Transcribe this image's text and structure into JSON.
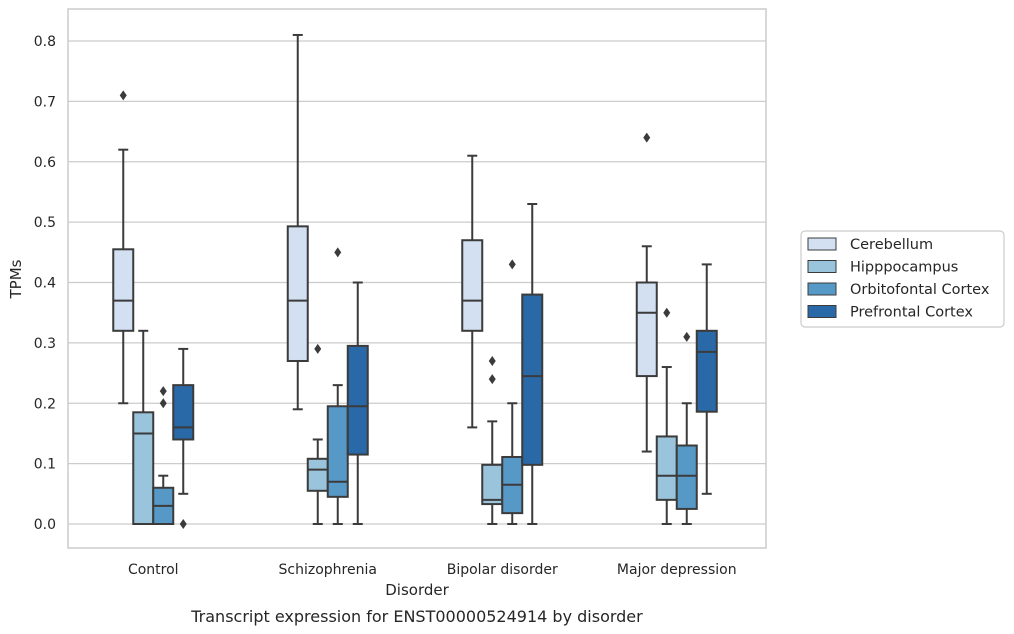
{
  "chart_data": {
    "type": "box",
    "title": "",
    "caption": "Transcript expression for ENST00000524914 by disorder",
    "xlabel": "Disorder",
    "ylabel": "TPMs",
    "ylim": [
      -0.04,
      0.85
    ],
    "yticks": [
      0.0,
      0.1,
      0.2,
      0.3,
      0.4,
      0.5,
      0.6,
      0.7,
      0.8
    ],
    "ytick_labels": [
      "0.0",
      "0.1",
      "0.2",
      "0.3",
      "0.4",
      "0.5",
      "0.6",
      "0.7",
      "0.8"
    ],
    "grid": true,
    "legend_position": "right",
    "categories": [
      "Control",
      "Schizophrenia",
      "Bipolar disorder",
      "Major depression"
    ],
    "series": [
      {
        "name": "Cerebellum",
        "color": "#d2e0f1",
        "boxes": [
          {
            "whislo": 0.2,
            "q1": 0.32,
            "med": 0.37,
            "q3": 0.455,
            "whishi": 0.62,
            "fliers": [
              0.71
            ]
          },
          {
            "whislo": 0.19,
            "q1": 0.27,
            "med": 0.37,
            "q3": 0.493,
            "whishi": 0.81,
            "fliers": []
          },
          {
            "whislo": 0.16,
            "q1": 0.32,
            "med": 0.37,
            "q3": 0.47,
            "whishi": 0.61,
            "fliers": []
          },
          {
            "whislo": 0.12,
            "q1": 0.245,
            "med": 0.35,
            "q3": 0.4,
            "whishi": 0.46,
            "fliers": [
              0.64
            ]
          }
        ]
      },
      {
        "name": "Hipppocampus",
        "color": "#9ac3dc",
        "boxes": [
          {
            "whislo": 0.0,
            "q1": 0.0,
            "med": 0.15,
            "q3": 0.185,
            "whishi": 0.32,
            "fliers": []
          },
          {
            "whislo": 0.0,
            "q1": 0.055,
            "med": 0.09,
            "q3": 0.108,
            "whishi": 0.14,
            "fliers": [
              0.29
            ]
          },
          {
            "whislo": 0.0,
            "q1": 0.033,
            "med": 0.04,
            "q3": 0.098,
            "whishi": 0.17,
            "fliers": [
              0.27,
              0.24
            ]
          },
          {
            "whislo": 0.0,
            "q1": 0.04,
            "med": 0.08,
            "q3": 0.145,
            "whishi": 0.26,
            "fliers": [
              0.35
            ]
          }
        ]
      },
      {
        "name": "Orbitofontal Cortex",
        "color": "#5799c6",
        "boxes": [
          {
            "whislo": 0.0,
            "q1": 0.0,
            "med": 0.03,
            "q3": 0.06,
            "whishi": 0.08,
            "fliers": [
              0.22,
              0.2
            ]
          },
          {
            "whislo": 0.0,
            "q1": 0.045,
            "med": 0.07,
            "q3": 0.195,
            "whishi": 0.23,
            "fliers": [
              0.45
            ]
          },
          {
            "whislo": 0.0,
            "q1": 0.018,
            "med": 0.065,
            "q3": 0.111,
            "whishi": 0.2,
            "fliers": [
              0.43
            ]
          },
          {
            "whislo": 0.0,
            "q1": 0.025,
            "med": 0.08,
            "q3": 0.13,
            "whishi": 0.2,
            "fliers": [
              0.31
            ]
          }
        ]
      },
      {
        "name": "Prefrontal Cortex",
        "color": "#2a69a8",
        "boxes": [
          {
            "whislo": 0.05,
            "q1": 0.14,
            "med": 0.16,
            "q3": 0.23,
            "whishi": 0.29,
            "fliers": [
              0.0
            ]
          },
          {
            "whislo": 0.0,
            "q1": 0.115,
            "med": 0.195,
            "q3": 0.295,
            "whishi": 0.4,
            "fliers": []
          },
          {
            "whislo": 0.0,
            "q1": 0.098,
            "med": 0.245,
            "q3": 0.38,
            "whishi": 0.53,
            "fliers": []
          },
          {
            "whislo": 0.05,
            "q1": 0.186,
            "med": 0.285,
            "q3": 0.32,
            "whishi": 0.43,
            "fliers": []
          }
        ]
      }
    ]
  },
  "colors": {
    "grid": "#cccccc",
    "frame": "#cccccc",
    "box_edge": "#3b3b3b"
  }
}
